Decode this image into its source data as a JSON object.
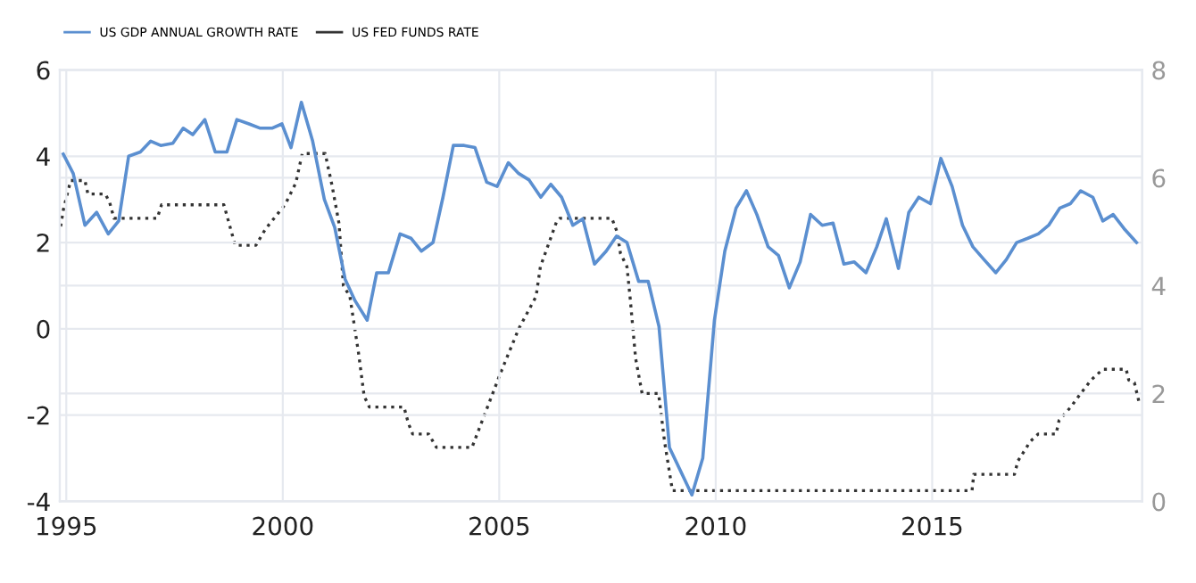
{
  "chart_data": {
    "type": "line",
    "legend": "top left",
    "grid": true,
    "xlim": [
      1994.85,
      2019.85
    ],
    "xticks": [
      1995,
      2000,
      2005,
      2010,
      2015
    ],
    "ylim": [
      -4,
      6
    ],
    "yticks": [
      -4,
      -2,
      0,
      2,
      4,
      6
    ],
    "y2lim": [
      0,
      8
    ],
    "y2ticks": [
      0,
      2,
      4,
      6,
      8
    ],
    "series": [
      {
        "name": "US GDP ANNUAL GROWTH RATE",
        "color": "#5b8fd0",
        "line_style": "solid",
        "x": [
          1994.93,
          1995.16,
          1995.43,
          1995.7,
          1995.97,
          1996.21,
          1996.44,
          1996.71,
          1996.95,
          1997.18,
          1997.46,
          1997.7,
          1997.92,
          1998.2,
          1998.44,
          1998.71,
          1998.94,
          1999.22,
          1999.48,
          1999.75,
          1999.98,
          2000.19,
          2000.43,
          2000.69,
          2000.96,
          2001.2,
          2001.44,
          2001.67,
          2001.95,
          2002.17,
          2002.44,
          2002.71,
          2002.96,
          2003.2,
          2003.47,
          2003.7,
          2003.94,
          2004.19,
          2004.44,
          2004.71,
          2004.95,
          2005.21,
          2005.45,
          2005.69,
          2005.96,
          2006.19,
          2006.44,
          2006.7,
          2006.93,
          2007.2,
          2007.47,
          2007.71,
          2007.95,
          2008.22,
          2008.44,
          2008.69,
          2008.93,
          2009.45,
          2009.7,
          2009.97,
          2010.21,
          2010.47,
          2010.71,
          2010.95,
          2011.21,
          2011.45,
          2011.7,
          2011.95,
          2012.19,
          2012.46,
          2012.71,
          2012.96,
          2013.2,
          2013.47,
          2013.72,
          2013.94,
          2014.22,
          2014.46,
          2014.69,
          2014.96,
          2015.2,
          2015.46,
          2015.7,
          2015.94,
          2016.2,
          2016.47,
          2016.71,
          2016.95,
          2017.21,
          2017.45,
          2017.69,
          2017.95,
          2018.19,
          2018.43,
          2018.71,
          2018.94,
          2019.18,
          2019.45,
          2019.72
        ],
        "values": [
          4.05,
          3.6,
          2.4,
          2.7,
          2.2,
          2.5,
          4.0,
          4.1,
          4.35,
          4.25,
          4.3,
          4.65,
          4.5,
          4.85,
          4.1,
          4.1,
          4.85,
          4.75,
          4.65,
          4.65,
          4.75,
          4.2,
          5.25,
          4.35,
          3.0,
          2.35,
          1.15,
          0.65,
          0.2,
          1.3,
          1.3,
          2.2,
          2.1,
          1.8,
          2.0,
          3.05,
          4.25,
          4.25,
          4.2,
          3.4,
          3.3,
          3.85,
          3.6,
          3.45,
          3.05,
          3.35,
          3.05,
          2.4,
          2.55,
          1.5,
          1.8,
          2.15,
          2.0,
          1.1,
          1.1,
          0.05,
          -2.75,
          -3.85,
          -3.0,
          0.2,
          1.8,
          2.8,
          3.2,
          2.65,
          1.9,
          1.7,
          0.95,
          1.55,
          2.65,
          2.4,
          2.45,
          1.5,
          1.55,
          1.3,
          1.9,
          2.55,
          1.4,
          2.7,
          3.05,
          2.9,
          3.95,
          3.3,
          2.4,
          1.9,
          1.6,
          1.3,
          1.6,
          2.0,
          2.1,
          2.2,
          2.4,
          2.8,
          2.9,
          3.2,
          3.05,
          2.5,
          2.65,
          2.3,
          2.0
        ]
      },
      {
        "name": "US FED FUNDS RATE",
        "color": "#333333",
        "line_style": "dotted",
        "axis": "y2",
        "x": [
          1994.87,
          1994.93,
          1995.1,
          1995.43,
          1995.5,
          1995.9,
          1996.0,
          1996.1,
          1997.1,
          1997.2,
          1998.64,
          1998.9,
          1999.38,
          1999.6,
          1999.85,
          2000.05,
          2000.3,
          2000.45,
          2000.98,
          2001.14,
          2001.3,
          2001.4,
          2001.55,
          2001.75,
          2001.88,
          2002.0,
          2002.8,
          2002.9,
          2003.0,
          2003.37,
          2003.55,
          2004.37,
          2005.04,
          2005.45,
          2005.85,
          2005.95,
          2006.33,
          2006.4,
          2007.6,
          2007.72,
          2007.8,
          2007.95,
          2008.02,
          2008.15,
          2008.3,
          2008.68,
          2008.82,
          2009.0,
          2015.92,
          2015.96,
          2016.9,
          2016.98,
          2017.18,
          2017.25,
          2017.45,
          2017.86,
          2017.93,
          2018.2,
          2018.43,
          2018.67,
          2018.94,
          2019.48,
          2019.54,
          2019.67,
          2019.79
        ],
        "values": [
          5.1,
          5.4,
          5.95,
          5.95,
          5.7,
          5.7,
          5.55,
          5.25,
          5.25,
          5.5,
          5.5,
          4.75,
          4.75,
          5.05,
          5.3,
          5.5,
          5.9,
          6.45,
          6.45,
          5.85,
          5.15,
          4.0,
          3.8,
          2.75,
          1.95,
          1.75,
          1.75,
          1.45,
          1.25,
          1.25,
          1.0,
          1.0,
          2.4,
          3.2,
          3.8,
          4.35,
          5.2,
          5.25,
          5.25,
          5.0,
          4.6,
          4.35,
          3.8,
          2.65,
          2.0,
          2.0,
          1.1,
          0.2,
          0.2,
          0.5,
          0.5,
          0.75,
          1.0,
          1.1,
          1.25,
          1.25,
          1.5,
          1.75,
          2.0,
          2.25,
          2.45,
          2.45,
          2.25,
          2.2,
          1.8
        ]
      }
    ]
  }
}
